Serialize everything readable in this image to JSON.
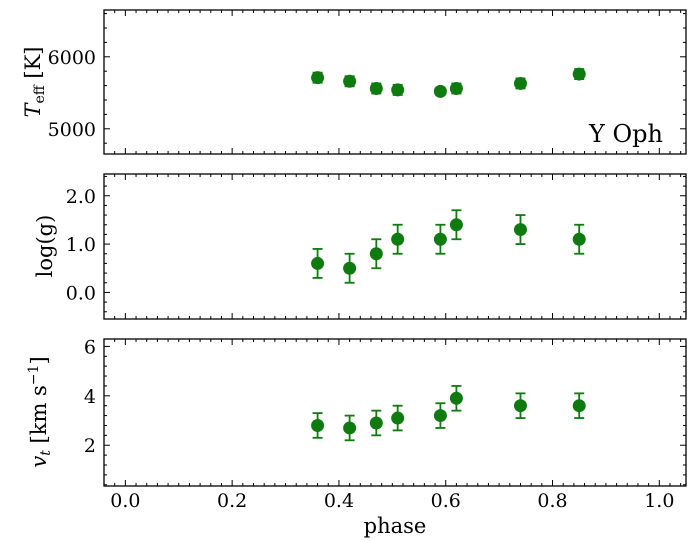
{
  "chart_data": {
    "type": "scatter",
    "x_label": "phase",
    "x_ticks": [
      "0.0",
      "0.2",
      "0.4",
      "0.6",
      "0.8",
      "1.0"
    ],
    "x_tick_values": [
      0.0,
      0.2,
      0.4,
      0.6,
      0.8,
      1.0
    ],
    "x_range": [
      -0.04,
      1.05
    ],
    "marker_color": "#0f7a0f",
    "phase": [
      0.36,
      0.42,
      0.47,
      0.51,
      0.59,
      0.62,
      0.74,
      0.85
    ],
    "panels": [
      {
        "id": "teff",
        "ylabel_main": "T",
        "ylabel_sub": "eff",
        "ylabel_rest": " [K]",
        "y_range": [
          4650,
          6650
        ],
        "y_ticks": [
          "5000",
          "6000"
        ],
        "y_tick_values": [
          5000,
          6000
        ],
        "annotation": "Y Oph",
        "values": [
          5710,
          5660,
          5560,
          5540,
          5520,
          5560,
          5630,
          5760
        ],
        "errors": [
          70,
          70,
          70,
          70,
          50,
          70,
          70,
          70
        ]
      },
      {
        "id": "logg",
        "ylabel": "log(g)",
        "y_range": [
          -0.55,
          2.45
        ],
        "y_ticks": [
          "0.0",
          "1.0",
          "2.0"
        ],
        "y_tick_values": [
          0.0,
          1.0,
          2.0
        ],
        "values": [
          0.6,
          0.5,
          0.8,
          1.1,
          1.1,
          1.4,
          1.3,
          1.1
        ],
        "errors": [
          0.3,
          0.3,
          0.3,
          0.3,
          0.3,
          0.3,
          0.3,
          0.3
        ]
      },
      {
        "id": "vt",
        "ylabel_main": "v",
        "ylabel_sub": "t",
        "ylabel_rest": " [km s",
        "ylabel_sup": "−1",
        "ylabel_close": "]",
        "y_range": [
          0.35,
          6.3
        ],
        "y_ticks": [
          "2",
          "4",
          "6"
        ],
        "y_tick_values": [
          2,
          4,
          6
        ],
        "values": [
          2.8,
          2.7,
          2.9,
          3.1,
          3.2,
          3.9,
          3.6,
          3.6
        ],
        "errors": [
          0.5,
          0.5,
          0.5,
          0.5,
          0.5,
          0.5,
          0.5,
          0.5
        ]
      }
    ]
  }
}
